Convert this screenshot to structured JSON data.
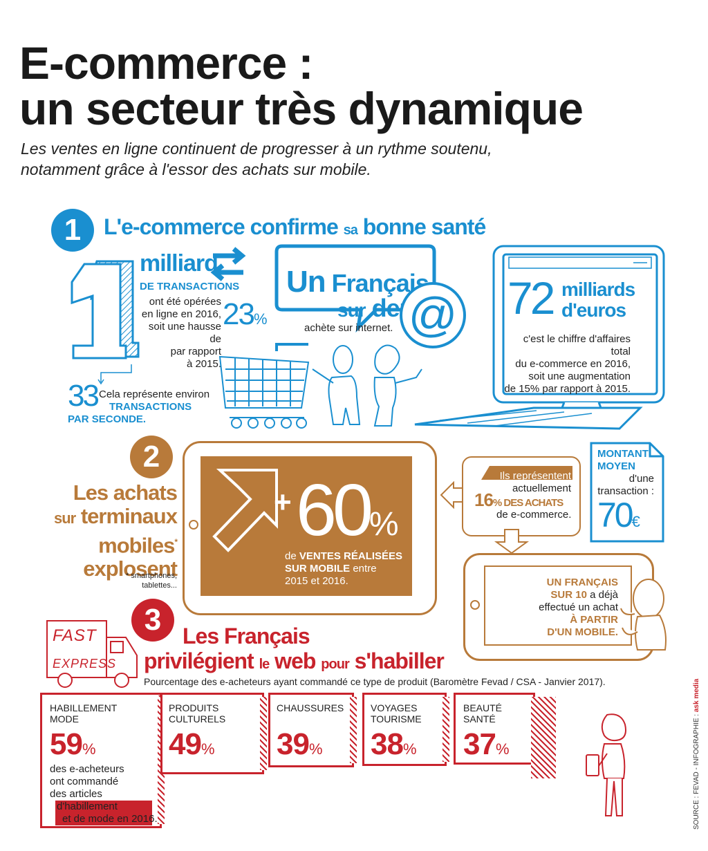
{
  "title_line1": "E-commerce :",
  "title_line2": "un secteur très dynamique",
  "subtitle_line1": "Les ventes en ligne continuent de progresser à un rythme soutenu,",
  "subtitle_line2": "notamment grâce à l'essor des achats sur mobile.",
  "colors": {
    "blue": "#1a8fd0",
    "brown": "#b87a3a",
    "red": "#c8232c"
  },
  "section1": {
    "number": "1",
    "heading_a": "L'e-commerce confirme",
    "heading_b": "sa",
    "heading_c": "bonne santé",
    "big_one": "1",
    "milliard": "milliard",
    "de_transactions": "DE TRANSACTIONS",
    "desc1": "ont été opérées",
    "desc2": "en ligne en 2016,",
    "desc3": "soit une hausse de",
    "desc4": "par rapport",
    "desc5": "à 2015.",
    "hausse": "23",
    "hausse_unit": "%",
    "per_sec_num": "33",
    "per_sec_1": "Cela représente environ",
    "per_sec_2": "TRANSACTIONS",
    "per_sec_3": "PAR SECONDE.",
    "francais_1": "Un",
    "francais_2": "Français",
    "francais_3": "sur",
    "francais_4": "deux",
    "francais_5": "achète sur internet.",
    "at_sign": "@",
    "ca_num": "72",
    "ca_unit1": "milliards",
    "ca_unit2": "d'euros",
    "ca_desc1": "c'est le chiffre d'affaires total",
    "ca_desc2": "du e-commerce en 2016,",
    "ca_desc3": "soit une augmentation",
    "ca_desc4": "de 15% par rapport à 2015."
  },
  "section2": {
    "number": "2",
    "heading1": "Les achats",
    "heading2a": "sur",
    "heading2b": "terminaux",
    "heading3": "mobiles",
    "heading3_star": "*",
    "heading4": "explosent",
    "footnote1": "* smartphones,",
    "footnote2": "tablettes...",
    "plus": "+",
    "growth": "60",
    "growth_unit": "%",
    "growth_desc1a": "de",
    "growth_desc1b": "VENTES RÉALISÉES",
    "growth_desc2a": "SUR MOBILE",
    "growth_desc2b": "entre",
    "growth_desc3": "2015 et 2016.",
    "share_1": "Ils représentent",
    "share_2": "actuellement",
    "share_num": "16",
    "share_3": "% DES ACHATS",
    "share_4": "de e-commerce.",
    "montant_1": "MONTANT",
    "montant_2": "MOYEN",
    "montant_3": "d'une",
    "montant_4": "transaction :",
    "montant_val": "70",
    "montant_cur": "€",
    "mobile_1": "UN FRANÇAIS",
    "mobile_2a": "SUR 10",
    "mobile_2b": "a déjà",
    "mobile_3": "effectué un achat",
    "mobile_4": "À PARTIR",
    "mobile_5": "D'UN MOBILE."
  },
  "section3": {
    "number": "3",
    "truck_1": "FAST",
    "truck_2": "EXPRESS",
    "heading1": "Les Français",
    "heading2a": "privilégient",
    "heading2b": "le",
    "heading2c": "web",
    "heading2d": "pour",
    "heading2e": "s'habiller",
    "caption": "Pourcentage des e-acheteurs ayant commandé ce type de produit (Baromètre Fevad / CSA - Janvier 2017).",
    "categories": [
      {
        "label1": "HABILLEMENT",
        "label2": "MODE",
        "value": "59",
        "unit": "%"
      },
      {
        "label1": "PRODUITS",
        "label2": "CULTURELS",
        "value": "49",
        "unit": "%"
      },
      {
        "label1": "CHAUSSURES",
        "label2": "",
        "value": "39",
        "unit": "%"
      },
      {
        "label1": "VOYAGES",
        "label2": "TOURISME",
        "value": "38",
        "unit": "%"
      },
      {
        "label1": "BEAUTÉ",
        "label2": "SANTÉ",
        "value": "37",
        "unit": "%"
      }
    ],
    "habill_note1": "des e-acheteurs",
    "habill_note2": "ont commandé",
    "habill_note3": "des articles",
    "habill_note4": "d'habillement",
    "habill_note5": "et de mode en 2016."
  },
  "source": "SOURCE : FEVAD - INFOGRAPHIE :",
  "source_brand": "ask media"
}
